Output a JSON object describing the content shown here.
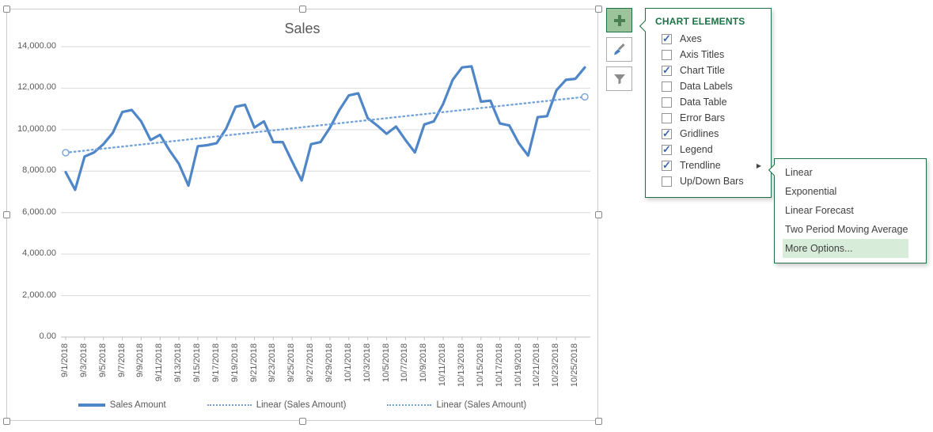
{
  "chart": {
    "legend": [
      {
        "label": "Sales Amount",
        "style": "solid"
      },
      {
        "label": "Linear (Sales Amount)",
        "style": "dotted"
      },
      {
        "label": "Linear (Sales Amount)",
        "style": "dotted"
      }
    ]
  },
  "chart_data": {
    "type": "line",
    "title": "Sales",
    "x": [
      "9/1/2018",
      "9/2/2018",
      "9/3/2018",
      "9/4/2018",
      "9/5/2018",
      "9/6/2018",
      "9/7/2018",
      "9/8/2018",
      "9/9/2018",
      "9/10/2018",
      "9/11/2018",
      "9/12/2018",
      "9/13/2018",
      "9/14/2018",
      "9/15/2018",
      "9/16/2018",
      "9/17/2018",
      "9/18/2018",
      "9/19/2018",
      "9/20/2018",
      "9/21/2018",
      "9/22/2018",
      "9/23/2018",
      "9/24/2018",
      "9/25/2018",
      "9/26/2018",
      "9/27/2018",
      "9/28/2018",
      "9/29/2018",
      "9/30/2018",
      "10/1/2018",
      "10/2/2018",
      "10/3/2018",
      "10/4/2018",
      "10/5/2018",
      "10/6/2018",
      "10/7/2018",
      "10/8/2018",
      "10/9/2018",
      "10/10/2018",
      "10/11/2018",
      "10/12/2018",
      "10/13/2018",
      "10/14/2018",
      "10/15/2018",
      "10/16/2018",
      "10/17/2018",
      "10/18/2018",
      "10/19/2018",
      "10/20/2018",
      "10/21/2018",
      "10/22/2018",
      "10/23/2018",
      "10/24/2018",
      "10/25/2018",
      "10/26/2018"
    ],
    "series": [
      {
        "name": "Sales Amount",
        "type": "line",
        "values": [
          7950,
          7100,
          8700,
          8900,
          9300,
          9850,
          10850,
          10950,
          10400,
          9500,
          9750,
          9000,
          8350,
          7300,
          9200,
          9250,
          9350,
          10050,
          11100,
          11200,
          10100,
          10400,
          9400,
          9400,
          8450,
          7550,
          9300,
          9400,
          10100,
          10950,
          11650,
          11750,
          10550,
          10200,
          9800,
          10150,
          9500,
          8900,
          10250,
          10400,
          11250,
          12400,
          13000,
          13050,
          11350,
          11400,
          10300,
          10200,
          9350,
          8750,
          10600,
          10650,
          11900,
          12400,
          12450,
          13000
        ]
      },
      {
        "name": "Linear (Sales Amount)",
        "type": "linear-trendline",
        "endpoints": [
          8890,
          11580
        ]
      },
      {
        "name": "Linear (Sales Amount)",
        "type": "linear-trendline",
        "endpoints": [
          8890,
          11580
        ]
      }
    ],
    "ylim": [
      0,
      14000
    ],
    "ytick_step": 2000,
    "y_tick_labels": [
      "0.00",
      "2,000.00",
      "4,000.00",
      "6,000.00",
      "8,000.00",
      "10,000.00",
      "12,000.00",
      "14,000.00"
    ],
    "x_tick_labels": [
      "9/1/2018",
      "9/3/2018",
      "9/5/2018",
      "9/7/2018",
      "9/9/2018",
      "9/11/2018",
      "9/13/2018",
      "9/15/2018",
      "9/17/2018",
      "9/19/2018",
      "9/21/2018",
      "9/23/2018",
      "9/25/2018",
      "9/27/2018",
      "9/29/2018",
      "10/1/2018",
      "10/3/2018",
      "10/5/2018",
      "10/7/2018",
      "10/9/2018",
      "10/11/2018",
      "10/13/2018",
      "10/15/2018",
      "10/17/2018",
      "10/19/2018",
      "10/21/2018",
      "10/23/2018",
      "10/25/2018"
    ],
    "grid": true,
    "legend_position": "bottom"
  },
  "colors": {
    "series_line": "#4e86c8",
    "trendline": "#74a3dc",
    "gridline": "#d9d9d9",
    "axis": "#bfbfbf",
    "chart_text": "#595959",
    "excel_green": "#1e7145",
    "menu_highlight": "#d8ecda"
  },
  "toolbar": {
    "chart_elements_button": "Chart Elements",
    "chart_styles_button": "Chart Styles",
    "chart_filters_button": "Chart Filters"
  },
  "panel": {
    "title": "CHART ELEMENTS",
    "items": [
      {
        "label": "Axes",
        "checked": true
      },
      {
        "label": "Axis Titles",
        "checked": false
      },
      {
        "label": "Chart Title",
        "checked": true
      },
      {
        "label": "Data Labels",
        "checked": false
      },
      {
        "label": "Data Table",
        "checked": false
      },
      {
        "label": "Error Bars",
        "checked": false
      },
      {
        "label": "Gridlines",
        "checked": true
      },
      {
        "label": "Legend",
        "checked": true
      },
      {
        "label": "Trendline",
        "checked": true,
        "has_submenu": true
      },
      {
        "label": "Up/Down Bars",
        "checked": false
      }
    ]
  },
  "submenu": {
    "items": [
      {
        "label": "Linear",
        "highlighted": false
      },
      {
        "label": "Exponential",
        "highlighted": false
      },
      {
        "label": "Linear Forecast",
        "highlighted": false
      },
      {
        "label": "Two Period Moving Average",
        "highlighted": false
      },
      {
        "label": "More Options...",
        "highlighted": true
      }
    ]
  }
}
